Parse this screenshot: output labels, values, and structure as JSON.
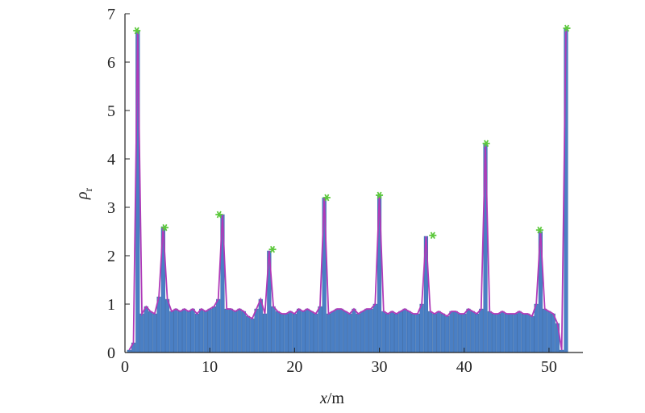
{
  "chart_data": {
    "type": "bar",
    "title": "",
    "xlabel_var": "x",
    "xlabel_unit": "/m",
    "ylabel_var": "ρ",
    "ylabel_sub": "r",
    "xlim": [
      0,
      54
    ],
    "ylim": [
      0,
      7
    ],
    "xticks": [
      "0",
      "10",
      "20",
      "30",
      "40",
      "50"
    ],
    "yticks": [
      "0",
      "1",
      "2",
      "3",
      "4",
      "5",
      "6",
      "7"
    ],
    "x": [
      0.5,
      1.0,
      1.5,
      2.0,
      2.5,
      3.0,
      3.5,
      4.0,
      4.5,
      5.0,
      5.5,
      6.0,
      6.5,
      7.0,
      7.5,
      8.0,
      8.5,
      9.0,
      9.5,
      10.0,
      10.5,
      11.0,
      11.5,
      12.0,
      12.5,
      13.0,
      13.5,
      14.0,
      14.5,
      15.0,
      15.5,
      16.0,
      16.5,
      17.0,
      17.5,
      18.0,
      18.5,
      19.0,
      19.5,
      20.0,
      20.5,
      21.0,
      21.5,
      22.0,
      22.5,
      23.0,
      23.5,
      24.0,
      24.5,
      25.0,
      25.5,
      26.0,
      26.5,
      27.0,
      27.5,
      28.0,
      28.5,
      29.0,
      29.5,
      30.0,
      30.5,
      31.0,
      31.5,
      32.0,
      32.5,
      33.0,
      33.5,
      34.0,
      34.5,
      35.0,
      35.5,
      36.0,
      36.5,
      37.0,
      37.5,
      38.0,
      38.5,
      39.0,
      39.5,
      40.0,
      40.5,
      41.0,
      41.5,
      42.0,
      42.5,
      43.0,
      43.5,
      44.0,
      44.5,
      45.0,
      45.5,
      46.0,
      46.5,
      47.0,
      47.5,
      48.0,
      48.5,
      49.0,
      49.5,
      50.0,
      50.5,
      51.0,
      51.5,
      52.0
    ],
    "values": [
      0.05,
      0.2,
      6.65,
      0.8,
      0.95,
      0.85,
      0.8,
      1.15,
      2.6,
      1.1,
      0.85,
      0.9,
      0.85,
      0.9,
      0.85,
      0.9,
      0.8,
      0.9,
      0.85,
      0.9,
      0.95,
      1.1,
      2.85,
      0.9,
      0.9,
      0.85,
      0.9,
      0.85,
      0.75,
      0.7,
      0.9,
      1.1,
      0.8,
      2.1,
      0.95,
      0.85,
      0.8,
      0.8,
      0.85,
      0.8,
      0.9,
      0.85,
      0.9,
      0.85,
      0.8,
      0.95,
      3.2,
      0.8,
      0.85,
      0.9,
      0.9,
      0.85,
      0.8,
      0.9,
      0.8,
      0.85,
      0.9,
      0.9,
      1.0,
      3.25,
      0.85,
      0.8,
      0.85,
      0.8,
      0.85,
      0.9,
      0.85,
      0.8,
      0.8,
      1.0,
      2.4,
      0.85,
      0.8,
      0.85,
      0.8,
      0.75,
      0.85,
      0.85,
      0.8,
      0.8,
      0.9,
      0.85,
      0.8,
      0.9,
      4.3,
      0.85,
      0.8,
      0.8,
      0.85,
      0.8,
      0.8,
      0.8,
      0.85,
      0.8,
      0.8,
      0.75,
      1.0,
      2.5,
      0.9,
      0.85,
      0.8,
      0.6,
      0.05,
      6.7
    ],
    "peaks": [
      {
        "x": 1.4,
        "y": 6.65
      },
      {
        "x": 4.7,
        "y": 2.58
      },
      {
        "x": 11.1,
        "y": 2.85
      },
      {
        "x": 17.4,
        "y": 2.13
      },
      {
        "x": 23.8,
        "y": 3.2
      },
      {
        "x": 30.0,
        "y": 3.25
      },
      {
        "x": 36.3,
        "y": 2.42
      },
      {
        "x": 42.6,
        "y": 4.32
      },
      {
        "x": 48.9,
        "y": 2.53
      },
      {
        "x": 52.1,
        "y": 6.7
      }
    ],
    "colors": {
      "bar_fill": "#4a7fc4",
      "bar_stroke": "#2f5f9e",
      "envelope": "#b03ab8",
      "peak_marker": "#5cc83c",
      "axis": "#222222"
    }
  }
}
